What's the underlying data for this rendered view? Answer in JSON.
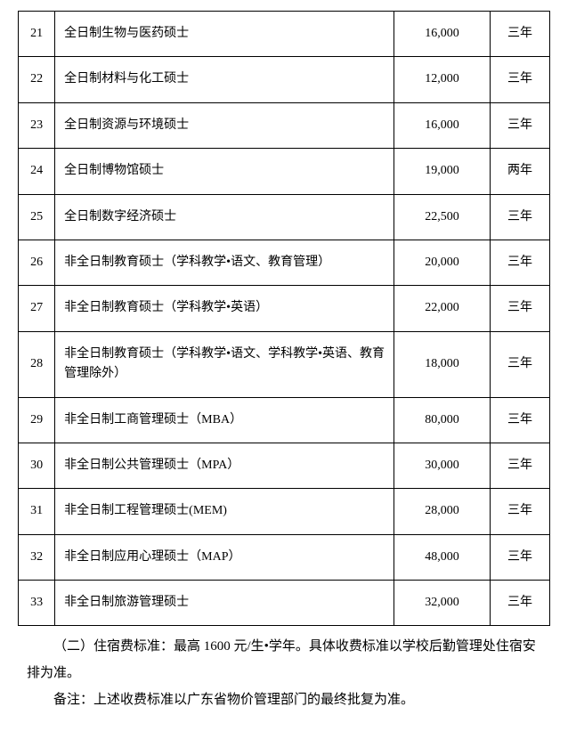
{
  "table": {
    "rows": [
      {
        "num": "21",
        "program": "全日制生物与医药硕士",
        "fee": "16,000",
        "duration": "三年"
      },
      {
        "num": "22",
        "program": "全日制材料与化工硕士",
        "fee": "12,000",
        "duration": "三年"
      },
      {
        "num": "23",
        "program": "全日制资源与环境硕士",
        "fee": "16,000",
        "duration": "三年"
      },
      {
        "num": "24",
        "program": "全日制博物馆硕士",
        "fee": "19,000",
        "duration": "两年"
      },
      {
        "num": "25",
        "program": "全日制数字经济硕士",
        "fee": "22,500",
        "duration": "三年"
      },
      {
        "num": "26",
        "program": "非全日制教育硕士（学科教学•语文、教育管理）",
        "fee": "20,000",
        "duration": "三年"
      },
      {
        "num": "27",
        "program": "非全日制教育硕士（学科教学•英语）",
        "fee": "22,000",
        "duration": "三年"
      },
      {
        "num": "28",
        "program": "非全日制教育硕士（学科教学•语文、学科教学•英语、教育管理除外）",
        "fee": "18,000",
        "duration": "三年"
      },
      {
        "num": "29",
        "program": "非全日制工商管理硕士（MBA）",
        "fee": "80,000",
        "duration": "三年"
      },
      {
        "num": "30",
        "program": "非全日制公共管理硕士（MPA）",
        "fee": "30,000",
        "duration": "三年"
      },
      {
        "num": "31",
        "program": "非全日制工程管理硕士(MEM)",
        "fee": "28,000",
        "duration": "三年"
      },
      {
        "num": "32",
        "program": "非全日制应用心理硕士（MAP）",
        "fee": "48,000",
        "duration": "三年"
      },
      {
        "num": "33",
        "program": "非全日制旅游管理硕士",
        "fee": "32,000",
        "duration": "三年"
      }
    ]
  },
  "notes": {
    "line1": "（二）住宿费标准：最高 1600 元/生•学年。具体收费标准以学校后勤管理处住宿安排为准。",
    "line2": "备注：上述收费标准以广东省物价管理部门的最终批复为准。"
  },
  "style": {
    "border_color": "#000000",
    "text_color": "#000000",
    "background_color": "#ffffff",
    "font_size_table": 14,
    "font_size_notes": 15
  }
}
